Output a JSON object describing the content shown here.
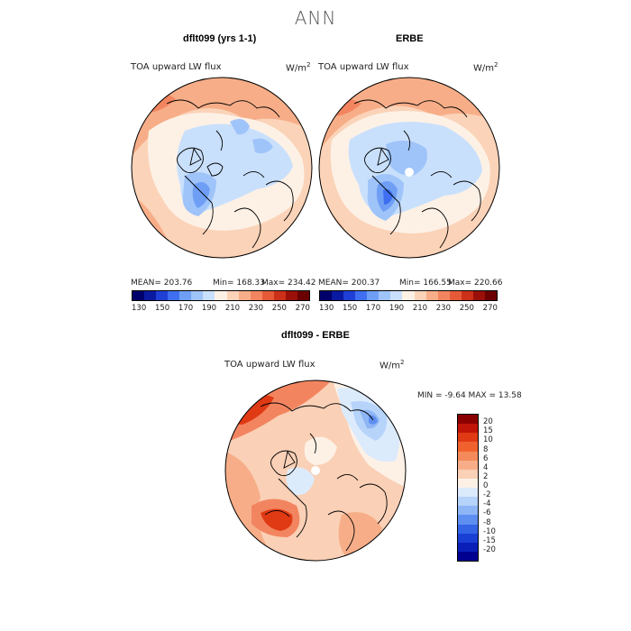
{
  "title": "ANN",
  "panels": [
    {
      "title": "dflt099 (yrs 1-1)",
      "variable": "TOA upward LW flux",
      "units": "W/m",
      "units_sup": "2",
      "mean": "MEAN= 203.76",
      "min": "Min= 168.33",
      "max": "Max= 234.42"
    },
    {
      "title": "ERBE",
      "variable": "TOA upward LW flux",
      "units": "W/m",
      "units_sup": "2",
      "mean": "MEAN= 200.37",
      "min": "Min= 166.55",
      "max": "Max= 220.66"
    },
    {
      "title": "dflt099 - ERBE",
      "variable": "TOA upward LW flux",
      "units": "W/m",
      "units_sup": "2",
      "minmax": "MIN =   -9.64  MAX =   13.58"
    }
  ],
  "colorbar_abs": {
    "colors": [
      "#00006b",
      "#0a1aa0",
      "#1f3fd6",
      "#3f6ff0",
      "#6f9ff5",
      "#9fc4fa",
      "#c9e0fc",
      "#fdf1e6",
      "#fbd3b8",
      "#f7ae88",
      "#f28560",
      "#e65a38",
      "#cc3018",
      "#9a1008",
      "#6a0000"
    ],
    "labels": [
      "130",
      "150",
      "170",
      "190",
      "210",
      "230",
      "250",
      "270"
    ]
  },
  "colorbar_diff": {
    "colors": [
      "#8a0000",
      "#c01408",
      "#e03a14",
      "#f0612e",
      "#f48a5a",
      "#f7ae88",
      "#fad0b6",
      "#fdf1e6",
      "#dcebfc",
      "#b6d3fa",
      "#8eb6f6",
      "#5e8ff0",
      "#3464e6",
      "#1a3fd4",
      "#0a1fb8",
      "#000090"
    ],
    "labels": [
      "20",
      "15",
      "10",
      "8",
      "6",
      "4",
      "2",
      "0",
      "-2",
      "-4",
      "-6",
      "-8",
      "-10",
      "-15",
      "-20"
    ]
  }
}
